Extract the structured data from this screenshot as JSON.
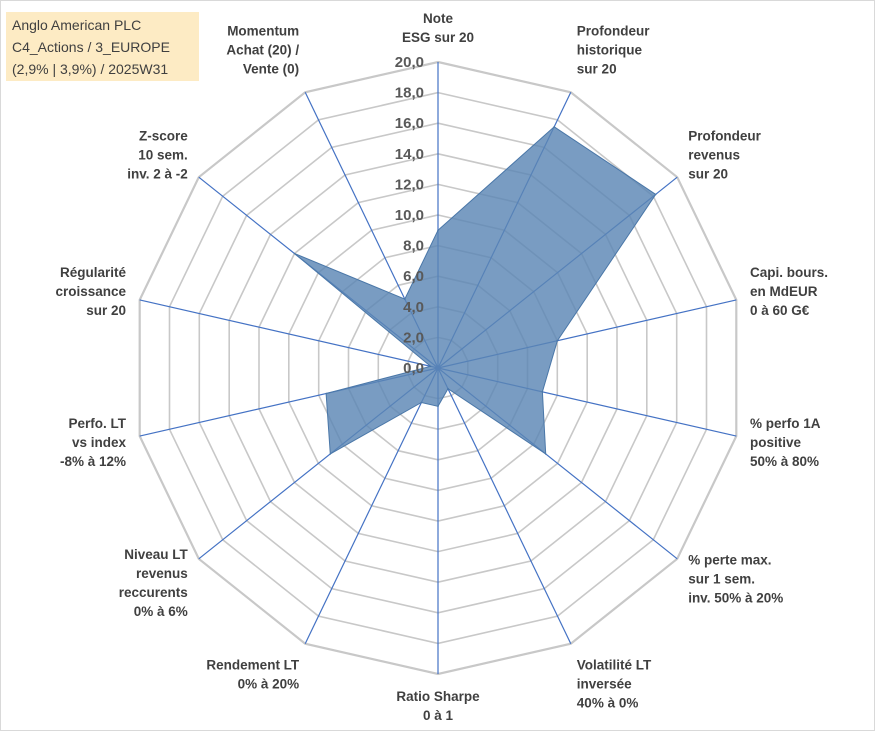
{
  "title_box": {
    "line1": "Anglo American PLC",
    "line2": "C4_Actions / 3_EUROPE",
    "line3": "(2,9% | 3,9%) / 2025W31"
  },
  "colors": {
    "fill": "#5b86b5",
    "stroke": "#4a77a8",
    "grid": "#c8c8c8",
    "axis": "#4472c4",
    "title_bg": "#fdebc4"
  },
  "chart_data": {
    "type": "radar",
    "rmin": 0,
    "rmax": 20,
    "tick_step": 2,
    "tick_labels": [
      "0,0",
      "2,0",
      "4,0",
      "6,0",
      "8,0",
      "10,0",
      "12,0",
      "14,0",
      "16,0",
      "18,0",
      "20,0"
    ],
    "categories": [
      [
        "Note",
        "ESG sur 20"
      ],
      [
        "Profondeur",
        "historique",
        "sur 20"
      ],
      [
        "Profondeur",
        "revenus",
        "sur 20"
      ],
      [
        "Capi. bours.",
        "en MdEUR",
        "0 à 60 G€"
      ],
      [
        "% perfo 1A",
        "positive",
        "50% à 80%"
      ],
      [
        "% perte max.",
        "sur 1 sem.",
        "inv. 50% à 20%"
      ],
      [
        "Volatilité LT",
        "inversée",
        "40% à 0%"
      ],
      [
        "Ratio Sharpe",
        "0 à 1"
      ],
      [
        "Rendement LT",
        "0% à 20%"
      ],
      [
        "Niveau LT",
        "revenus",
        "reccurents",
        "0% à 6%"
      ],
      [
        "Perfo. LT",
        "vs index",
        "-8% à 12%"
      ],
      [
        "Régularité",
        "croissance",
        "sur 20"
      ],
      [
        "Z-score",
        "10 sem.",
        "inv. 2 à -2"
      ],
      [
        "Momentum",
        "Achat (20) /",
        "Vente (0)"
      ]
    ],
    "series": [
      {
        "values": [
          9.0,
          17.5,
          18.2,
          8.0,
          7.0,
          9.0,
          1.5,
          2.5,
          2.5,
          9.0,
          7.5,
          0.5,
          12.0,
          5.0
        ]
      }
    ],
    "grid": true
  }
}
